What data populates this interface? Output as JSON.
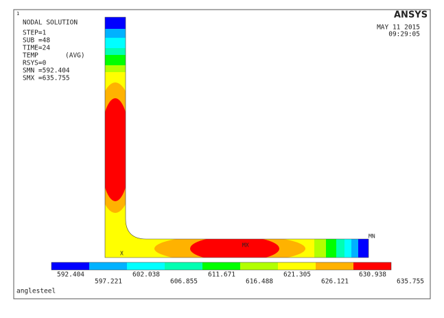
{
  "window": {
    "corner_label": "1",
    "footer": "anglesteel"
  },
  "info": {
    "title": "NODAL SOLUTION",
    "lines": [
      "STEP=1",
      "SUB =48",
      "TIME=24",
      "TEMP",
      "RSYS=0",
      "SMN =592.404",
      "SMX =635.755"
    ],
    "avg": "(AVG)"
  },
  "brand": {
    "logo": "ANSYS",
    "date": "MAY 11 2015",
    "time": "09:29:05"
  },
  "markers": {
    "min": "MN",
    "max": "MX",
    "x_axis": "X"
  },
  "legend": {
    "colors": [
      "#0000ff",
      "#00b2ff",
      "#00ffff",
      "#00ffb2",
      "#00ff00",
      "#b2ff00",
      "#ffff00",
      "#ffb200",
      "#ff0000"
    ],
    "labels": [
      "592.404",
      "597.221",
      "602.038",
      "606.855",
      "611.671",
      "616.488",
      "621.305",
      "626.121",
      "630.938",
      "635.755"
    ]
  }
}
